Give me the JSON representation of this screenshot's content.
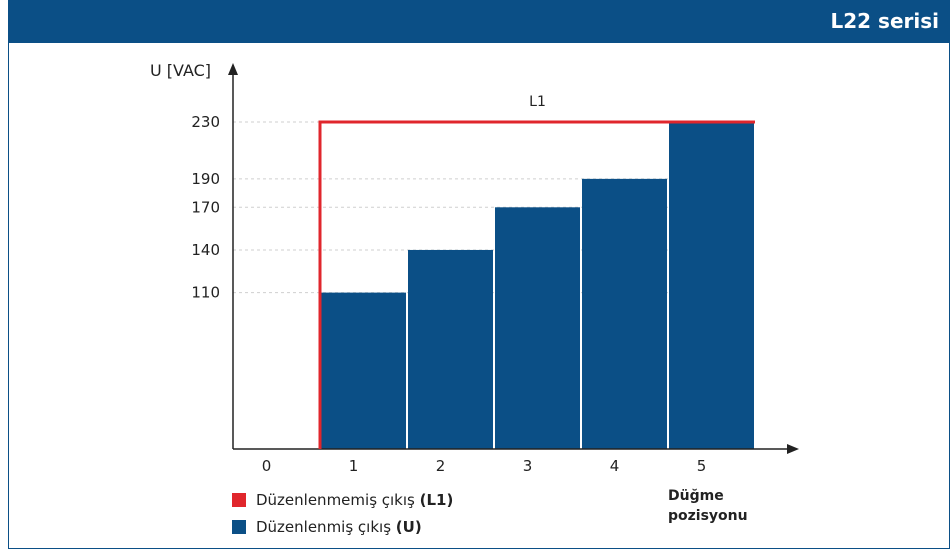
{
  "header": {
    "title": "L22 serisi"
  },
  "colors": {
    "header": "#0b4f86",
    "bar": "#0b4f86",
    "line": "#e0262c"
  },
  "chart_data": {
    "type": "bar",
    "ylabel": "U [VAC]",
    "xlabel_line1": "Düğme",
    "xlabel_line2": "pozisyonu",
    "categories": [
      "0",
      "1",
      "2",
      "3",
      "4",
      "5"
    ],
    "yticks": [
      110,
      140,
      170,
      190,
      230
    ],
    "ylim": [
      0,
      255
    ],
    "series": [
      {
        "name": "U",
        "values": [
          null,
          110,
          140,
          170,
          190,
          230
        ]
      },
      {
        "name": "L1",
        "type": "step",
        "values": [
          0,
          230,
          230,
          230,
          230,
          230
        ]
      }
    ],
    "line_label": "L1"
  },
  "legend": [
    {
      "text": "Düzenlenmemiş çıkış",
      "bold": "(L1)",
      "color": "#e0262c"
    },
    {
      "text": "Düzenlenmiş çıkış",
      "bold": "(U)",
      "color": "#0b4f86"
    }
  ]
}
